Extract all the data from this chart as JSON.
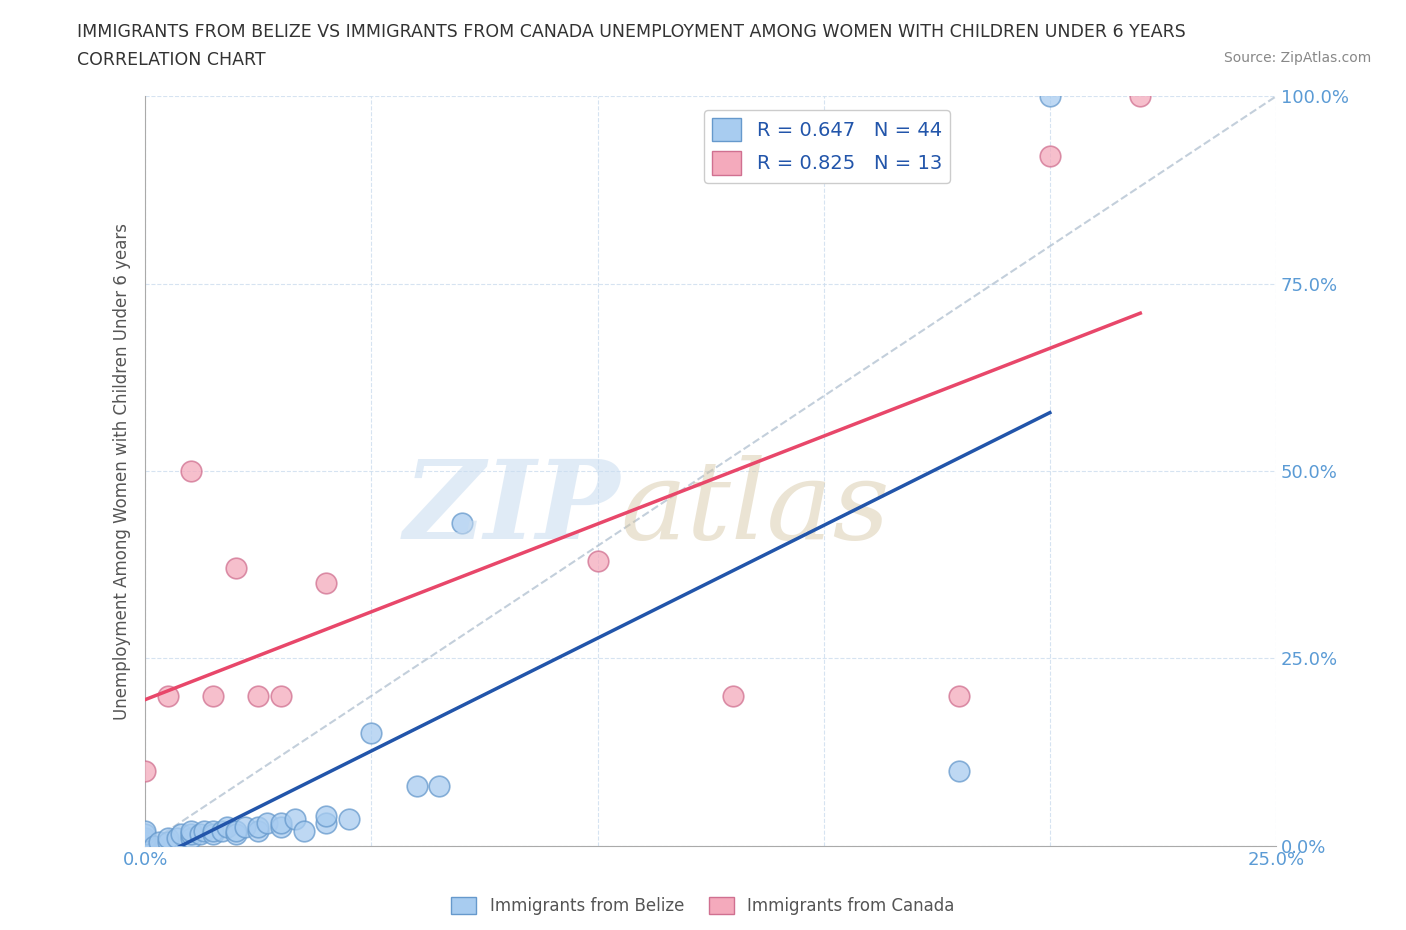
{
  "title_line1": "IMMIGRANTS FROM BELIZE VS IMMIGRANTS FROM CANADA UNEMPLOYMENT AMONG WOMEN WITH CHILDREN UNDER 6 YEARS",
  "title_line2": "CORRELATION CHART",
  "source": "Source: ZipAtlas.com",
  "ylabel": "Unemployment Among Women with Children Under 6 years",
  "xlim": [
    0.0,
    0.25
  ],
  "ylim": [
    0.0,
    1.0
  ],
  "belize_color": "#A8CCF0",
  "belize_edge_color": "#6699CC",
  "canada_color": "#F4AABC",
  "canada_edge_color": "#D07090",
  "belize_R": 0.647,
  "belize_N": 44,
  "canada_R": 0.825,
  "canada_N": 13,
  "belize_line_color": "#2255AA",
  "canada_line_color": "#E8476A",
  "background_color": "#FFFFFF",
  "tick_color": "#5B9BD5",
  "belize_x": [
    0.0,
    0.0,
    0.0,
    0.0,
    0.0,
    0.0,
    0.0,
    0.0,
    0.0,
    0.0,
    0.002,
    0.003,
    0.005,
    0.005,
    0.007,
    0.008,
    0.01,
    0.01,
    0.01,
    0.012,
    0.013,
    0.015,
    0.015,
    0.017,
    0.018,
    0.02,
    0.02,
    0.022,
    0.025,
    0.025,
    0.027,
    0.03,
    0.03,
    0.033,
    0.035,
    0.04,
    0.04,
    0.045,
    0.05,
    0.06,
    0.065,
    0.07,
    0.18,
    0.2
  ],
  "belize_y": [
    0.0,
    0.0,
    0.0,
    0.0,
    0.0,
    0.005,
    0.008,
    0.01,
    0.015,
    0.02,
    0.0,
    0.005,
    0.005,
    0.01,
    0.01,
    0.015,
    0.01,
    0.015,
    0.02,
    0.015,
    0.02,
    0.015,
    0.02,
    0.02,
    0.025,
    0.015,
    0.02,
    0.025,
    0.02,
    0.025,
    0.03,
    0.025,
    0.03,
    0.035,
    0.02,
    0.03,
    0.04,
    0.035,
    0.15,
    0.08,
    0.08,
    0.43,
    0.1,
    1.0
  ],
  "canada_x": [
    0.0,
    0.005,
    0.01,
    0.015,
    0.02,
    0.025,
    0.03,
    0.04,
    0.1,
    0.13,
    0.18,
    0.2,
    0.22
  ],
  "canada_y": [
    0.1,
    0.2,
    0.5,
    0.2,
    0.37,
    0.2,
    0.2,
    0.35,
    0.38,
    0.2,
    0.2,
    0.92,
    1.0
  ]
}
